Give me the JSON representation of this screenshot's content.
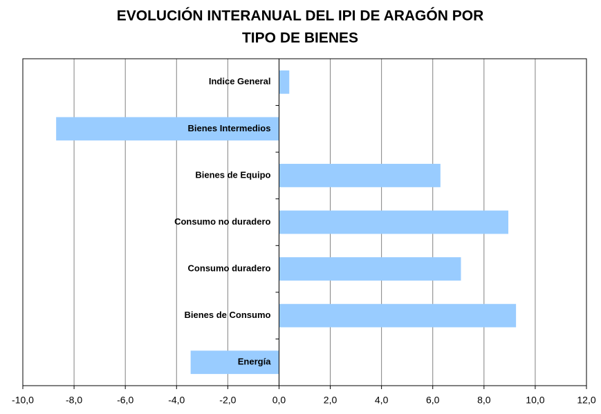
{
  "chart_data": {
    "type": "barh",
    "title": [
      "EVOLUCIÓN INTERANUAL DEL IPI DE ARAGÓN POR",
      "TIPO DE BIENES"
    ],
    "categories": [
      "Indice General",
      "Bienes Intermedios",
      "Bienes de Equipo",
      "Consumo no duradero",
      "Consumo duradero",
      "Bienes de Consumo",
      "Energía"
    ],
    "values": [
      0.4,
      -8.7,
      6.3,
      8.95,
      7.1,
      9.25,
      -3.45
    ],
    "color": "#99ccff",
    "xlim": [
      -10,
      12
    ],
    "xticks": [
      {
        "value": -10,
        "label": "-10,0"
      },
      {
        "value": -8,
        "label": "-8,0"
      },
      {
        "value": -6,
        "label": "-6,0"
      },
      {
        "value": -4,
        "label": "-4,0"
      },
      {
        "value": -2,
        "label": "-2,0"
      },
      {
        "value": 0,
        "label": "0,0"
      },
      {
        "value": 2,
        "label": "2,0"
      },
      {
        "value": 4,
        "label": "4,0"
      },
      {
        "value": 6,
        "label": "6,0"
      },
      {
        "value": 8,
        "label": "8,0"
      },
      {
        "value": 10,
        "label": "10,0"
      },
      {
        "value": 12,
        "label": "12,0"
      }
    ],
    "grid": true
  }
}
